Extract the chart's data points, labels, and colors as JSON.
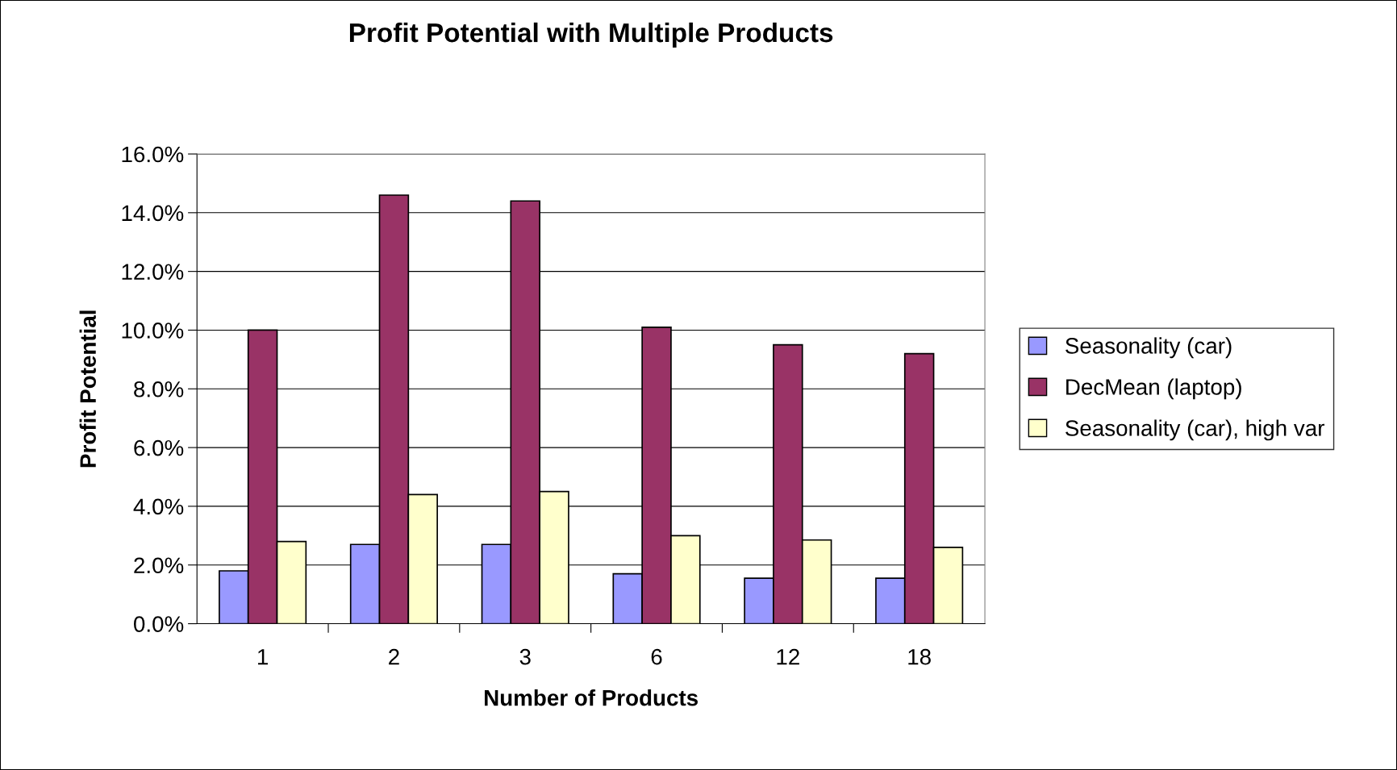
{
  "chart_data": {
    "type": "bar",
    "title": "Profit Potential with Multiple Products",
    "xlabel": "Number of Products",
    "ylabel": "Profit Potential",
    "categories": [
      "1",
      "2",
      "3",
      "6",
      "12",
      "18"
    ],
    "series": [
      {
        "name": "Seasonality (car)",
        "color": "#9999ff",
        "values": [
          1.8,
          2.7,
          2.7,
          1.7,
          1.55,
          1.55
        ]
      },
      {
        "name": "DecMean (laptop)",
        "color": "#993366",
        "values": [
          10.0,
          14.6,
          14.4,
          10.1,
          9.5,
          9.2
        ]
      },
      {
        "name": "Seasonality (car), high var",
        "color": "#ffffcc",
        "values": [
          2.8,
          4.4,
          4.5,
          3.0,
          2.85,
          2.6
        ]
      }
    ],
    "ylim": [
      0,
      16
    ],
    "yticks": [
      {
        "value": 0,
        "label": "0.0%"
      },
      {
        "value": 2,
        "label": "2.0%"
      },
      {
        "value": 4,
        "label": "4.0%"
      },
      {
        "value": 6,
        "label": "6.0%"
      },
      {
        "value": 8,
        "label": "8.0%"
      },
      {
        "value": 10,
        "label": "10.0%"
      },
      {
        "value": 12,
        "label": "12.0%"
      },
      {
        "value": 14,
        "label": "14.0%"
      },
      {
        "value": 16,
        "label": "16.0%"
      }
    ],
    "grid": "y",
    "legend": "right"
  }
}
